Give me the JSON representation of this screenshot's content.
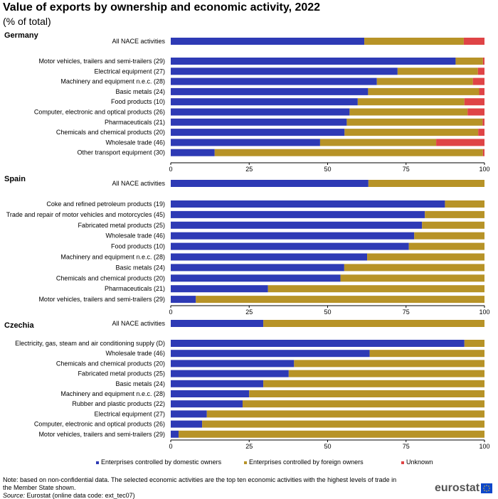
{
  "title": "Value of exports by ownership and economic activity, 2022",
  "subtitle": "(% of total)",
  "legend": {
    "domestic": "Enterprises controlled by domestic owners",
    "foreign": "Enterprises controlled by foreign owners",
    "unknown": "Unknown"
  },
  "colors": {
    "domestic": "#2e3ab5",
    "foreign": "#b79327",
    "unknown": "#df4446"
  },
  "note": "Note: based on non-confidential data. The selected economic activities are the top ten economic activities with the highest levels of trade in the Member State shown.",
  "source_label": "Source:",
  "source_text": "Eurostat (online data code: ext_tec07)",
  "logo_text": "eurostat",
  "chart_data": [
    {
      "type": "bar",
      "title": "Germany",
      "orientation": "horizontal",
      "stacked": true,
      "xlim": [
        0,
        100
      ],
      "xticks": [
        "0",
        "25",
        "50",
        "75",
        "100"
      ],
      "categories": [
        "All NACE activities",
        "Motor vehicles, trailers and semi-trailers (29)",
        "Electrical equipment (27)",
        "Machinery and equipment n.e.c. (28)",
        "Basic metals (24)",
        "Food products (10)",
        "Computer, electronic and optical products (26)",
        "Pharmaceuticals (21)",
        "Chemicals and chemical products (20)",
        "Wholesale trade (46)",
        "Other transport equipment (30)"
      ],
      "series": [
        {
          "name": "Enterprises controlled by domestic owners",
          "values": [
            61.7,
            90.8,
            72.3,
            65.7,
            62.9,
            59.6,
            57.0,
            56.1,
            55.4,
            47.6,
            14.0
          ]
        },
        {
          "name": "Enterprises controlled by foreign owners",
          "values": [
            31.7,
            8.7,
            25.6,
            30.6,
            35.4,
            34.0,
            37.6,
            43.3,
            42.6,
            37.0,
            85.5
          ]
        },
        {
          "name": "Unknown",
          "values": [
            6.6,
            0.5,
            2.1,
            3.7,
            1.7,
            6.4,
            5.4,
            0.6,
            2.0,
            15.4,
            0.5
          ]
        }
      ]
    },
    {
      "type": "bar",
      "title": "Spain",
      "orientation": "horizontal",
      "stacked": true,
      "xlim": [
        0,
        100
      ],
      "xticks": [
        "0",
        "25",
        "50",
        "75",
        "100"
      ],
      "categories": [
        "All NACE activities",
        "Coke and refined petroleum products (19)",
        "Trade and repair of motor vehicles and motorcycles (45)",
        "Fabricated metal products (25)",
        "Wholesale trade (46)",
        "Food products (10)",
        "Machinery and equipment n.e.c. (28)",
        "Basic metals (24)",
        "Chemicals and chemical products (20)",
        "Pharmaceuticals (21)",
        "Motor vehicles, trailers and semi-trailers (29)"
      ],
      "series": [
        {
          "name": "Enterprises controlled by domestic owners",
          "values": [
            63.0,
            87.4,
            81.0,
            80.1,
            77.6,
            75.9,
            62.6,
            55.3,
            54.1,
            31.0,
            8.0
          ]
        },
        {
          "name": "Enterprises controlled by foreign owners",
          "values": [
            37.0,
            12.6,
            19.0,
            19.9,
            22.4,
            24.1,
            37.4,
            44.7,
            45.9,
            69.0,
            92.0
          ]
        },
        {
          "name": "Unknown",
          "values": [
            0,
            0,
            0,
            0,
            0,
            0,
            0,
            0,
            0,
            0,
            0
          ]
        }
      ]
    },
    {
      "type": "bar",
      "title": "Czechia",
      "orientation": "horizontal",
      "stacked": true,
      "xlim": [
        0,
        100
      ],
      "xticks": [
        "0",
        "25",
        "50",
        "75",
        "100"
      ],
      "categories": [
        "All NACE activities",
        "Electricity, gas, steam and air conditioning supply (D)",
        "Wholesale trade (46)",
        "Chemicals and chemical products (20)",
        "Fabricated metal products (25)",
        "Basic metals (24)",
        "Machinery and equipment n.e.c. (28)",
        "Rubber and plastic products (22)",
        "Electrical equipment (27)",
        "Computer, electronic and optical products (26)",
        "Motor vehicles, trailers and semi-trailers (29)"
      ],
      "series": [
        {
          "name": "Enterprises controlled by domestic owners",
          "values": [
            29.5,
            93.6,
            63.4,
            39.3,
            37.6,
            29.5,
            25.0,
            22.9,
            11.5,
            10.0,
            2.5
          ]
        },
        {
          "name": "Enterprises controlled by foreign owners",
          "values": [
            70.5,
            6.4,
            36.6,
            60.7,
            62.4,
            70.5,
            75.0,
            77.1,
            88.5,
            90.0,
            97.5
          ]
        },
        {
          "name": "Unknown",
          "values": [
            0,
            0,
            0,
            0,
            0,
            0,
            0,
            0,
            0,
            0,
            0
          ]
        }
      ]
    }
  ]
}
